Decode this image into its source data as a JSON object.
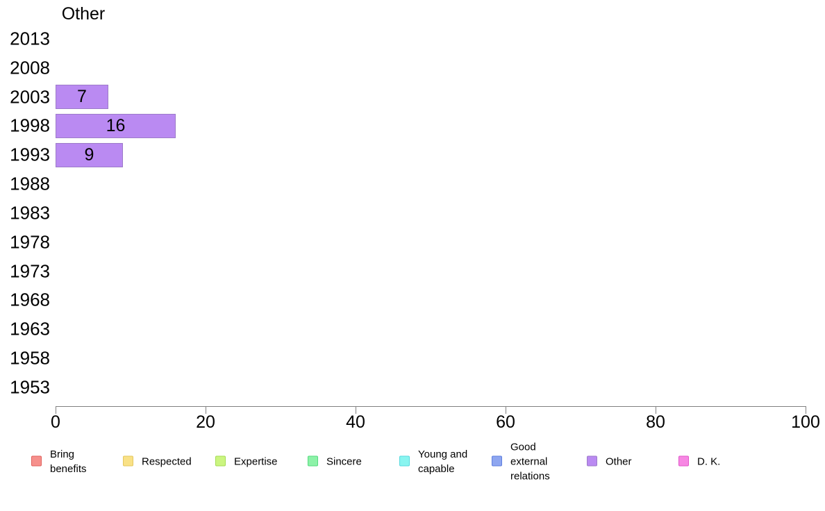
{
  "chart_data": {
    "type": "bar",
    "orientation": "horizontal",
    "title": "Other",
    "categories": [
      "2013",
      "2008",
      "2003",
      "1998",
      "1993",
      "1988",
      "1983",
      "1978",
      "1973",
      "1968",
      "1963",
      "1958",
      "1953"
    ],
    "series": [
      {
        "name": "Other",
        "values": [
          0,
          0,
          7,
          16,
          9,
          0,
          0,
          0,
          0,
          0,
          0,
          0,
          0
        ],
        "fill_color": "#ba8af2",
        "border_color": "#9c7bc8"
      }
    ],
    "bar_value_labels": [
      "",
      "",
      "7",
      "16",
      "9",
      "",
      "",
      "",
      "",
      "",
      "",
      "",
      ""
    ],
    "xlabel": "",
    "ylabel": "",
    "xlim": [
      0,
      100
    ],
    "x_ticks": [
      0,
      20,
      40,
      60,
      80,
      100
    ],
    "grid": false,
    "axis_color": "#808080",
    "text_color": "#000000",
    "legend_position": "bottom",
    "legend": [
      {
        "label": "Bring\nbenefits",
        "name": "bring-benefits",
        "fill": "#f6908c",
        "border": "#e0615c"
      },
      {
        "label": "Respected",
        "name": "respected",
        "fill": "#f9e186",
        "border": "#e3c75f"
      },
      {
        "label": "Expertise",
        "name": "expertise",
        "fill": "#cbf580",
        "border": "#a4dc55"
      },
      {
        "label": "Sincere",
        "name": "sincere",
        "fill": "#8df2a8",
        "border": "#55d97e"
      },
      {
        "label": "Young and\ncapable",
        "name": "young-and-capable",
        "fill": "#89f5f0",
        "border": "#58d9de"
      },
      {
        "label": "Good\nexternal\nrelations",
        "name": "good-external-relations",
        "fill": "#8ea6f0",
        "border": "#5f7fde"
      },
      {
        "label": "Other",
        "name": "other",
        "fill": "#ba8af2",
        "border": "#9c7bc8"
      },
      {
        "label": "D. K.",
        "name": "d-k",
        "fill": "#f787e3",
        "border": "#e057c9"
      }
    ]
  }
}
